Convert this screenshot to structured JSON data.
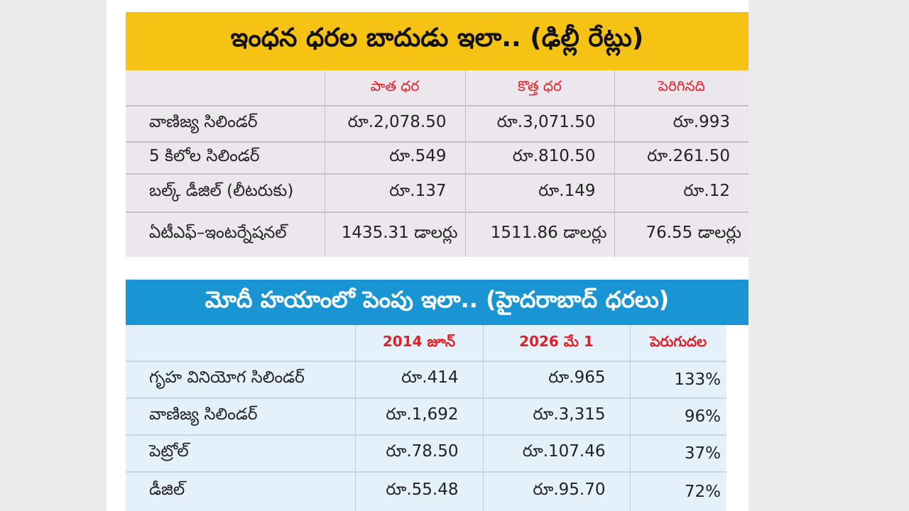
{
  "table1": {
    "title": "ఇంధన ధరల బాదుడు ఇలా.. (ఢిల్లీ రేట్లు)",
    "headers": [
      "",
      "పాత ధర",
      "కొత్త ధర",
      "పెరిగినది"
    ],
    "rows": [
      [
        "వాణిజ్య సిలిండర్",
        "రూ.2,078.50",
        "రూ.3,071.50",
        "రూ.993"
      ],
      [
        "5 కిలోల సిలిండర్",
        "రూ.549",
        "రూ.810.50",
        "రూ.261.50"
      ],
      [
        "బల్క్ డీజిల్ (లీటరుకు)",
        "రూ.137",
        "రూ.149",
        "రూ.12"
      ],
      [
        "ఏటీఎఫ్–ఇంటర్నేషనల్",
        "1435.31 డాలర్లు",
        "1511.86 డాలర్లు",
        "76.55 డాలర్లు"
      ]
    ]
  },
  "table2": {
    "title": "మోదీ హయాంలో పెంపు ఇలా.. (హైదరాబాద్ ధరలు)",
    "headers": [
      "",
      "2014 జూన్",
      "2026 మే 1",
      "పెరుగుదల"
    ],
    "rows": [
      [
        "గృహ వినియోగ సిలిండర్",
        "రూ.414",
        "రూ.965",
        "133%"
      ],
      [
        "వాణిజ్య సిలిండర్",
        "రూ.1,692",
        "రూ.3,315",
        "96%"
      ],
      [
        "పెట్రోల్",
        "రూ.78.50",
        "రూ.107.46",
        "37%"
      ],
      [
        "డీజిల్",
        "రూ.55.48",
        "రూ.95.70",
        "72%"
      ]
    ]
  },
  "colors": {
    "title1_bg": "#f6c315",
    "title2_bg": "#1a95d4",
    "header_text": "#e21f26",
    "table1_bg": "#ece7ed",
    "table2_bg": "#e5f1fa"
  }
}
